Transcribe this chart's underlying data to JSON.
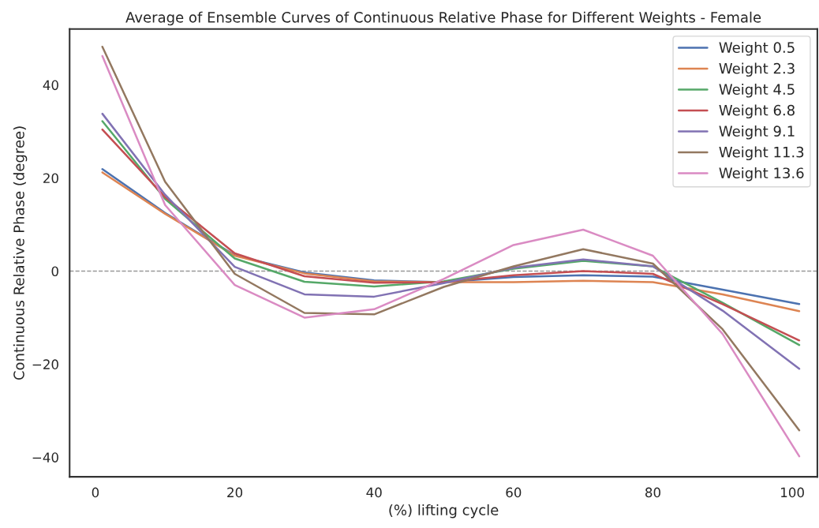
{
  "chart_data": {
    "type": "line",
    "title": "Average of Ensemble Curves of Continuous Relative Phase for Different Weights - Female",
    "xlabel": "(%) lifting cycle",
    "ylabel": "Continuous Relative Phase (degree)",
    "x": [
      1,
      10,
      20,
      30,
      40,
      50,
      60,
      70,
      80,
      90,
      101
    ],
    "series": [
      {
        "name": "Weight 0.5",
        "color": "#4c72b0",
        "values": [
          21.9,
          12.5,
          3.4,
          -0.3,
          -2.0,
          -2.4,
          -1.3,
          -0.9,
          -1.2,
          -4.0,
          -7.1
        ]
      },
      {
        "name": "Weight 2.3",
        "color": "#dd8452",
        "values": [
          21.2,
          12.3,
          3.3,
          -0.5,
          -2.2,
          -2.4,
          -2.4,
          -2.1,
          -2.4,
          -5.0,
          -8.6
        ]
      },
      {
        "name": "Weight 4.5",
        "color": "#55a868",
        "values": [
          32.2,
          15.5,
          2.7,
          -2.3,
          -3.3,
          -2.2,
          0.5,
          2.2,
          1.0,
          -6.8,
          -15.9
        ]
      },
      {
        "name": "Weight 6.8",
        "color": "#c44e52",
        "values": [
          30.4,
          15.9,
          3.8,
          -1.1,
          -2.5,
          -2.4,
          -0.9,
          0.0,
          -0.6,
          -7.1,
          -14.9
        ]
      },
      {
        "name": "Weight 9.1",
        "color": "#8172b3",
        "values": [
          33.8,
          16.4,
          0.9,
          -5.0,
          -5.5,
          -2.6,
          0.7,
          2.5,
          1.0,
          -8.5,
          -21.0
        ]
      },
      {
        "name": "Weight 11.3",
        "color": "#937860",
        "values": [
          48.2,
          19.2,
          -0.6,
          -9.0,
          -9.3,
          -3.4,
          1.0,
          4.7,
          1.6,
          -12.5,
          -34.2
        ]
      },
      {
        "name": "Weight 13.6",
        "color": "#da8bc3",
        "values": [
          46.2,
          14.2,
          -3.0,
          -10.0,
          -8.2,
          -1.7,
          5.6,
          8.9,
          3.3,
          -13.5,
          -39.8
        ]
      }
    ],
    "xlim": [
      -3.7,
      103.6
    ],
    "ylim": [
      -44.2,
      52
    ],
    "xticks": [
      0,
      20,
      40,
      60,
      80,
      100
    ],
    "yticks": [
      -40,
      -20,
      0,
      20,
      40
    ],
    "ref_lines": [
      {
        "axis": "y",
        "value": 0,
        "color": "#999999",
        "line_style": "dashed"
      }
    ],
    "legend": "top right",
    "grid": false
  }
}
